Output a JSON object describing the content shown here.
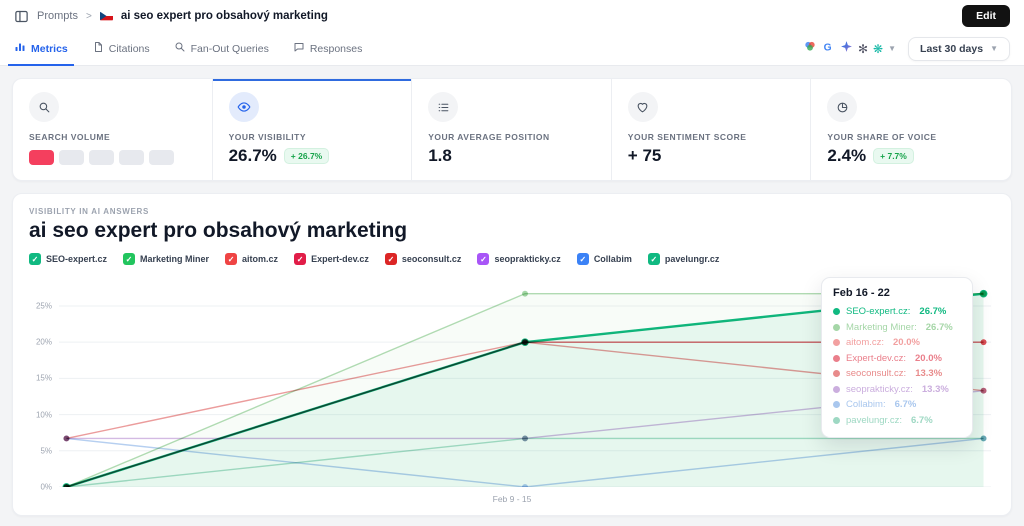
{
  "header": {
    "breadcrumb": "Prompts",
    "separator": ">",
    "title": "ai seo expert pro obsahový marketing",
    "edit_label": "Edit"
  },
  "tabs": [
    {
      "label": "Metrics",
      "active": true
    },
    {
      "label": "Citations",
      "active": false
    },
    {
      "label": "Fan-Out Queries",
      "active": false
    },
    {
      "label": "Responses",
      "active": false
    }
  ],
  "filters": {
    "date_range": "Last 30 days",
    "engine_icons": [
      "ai-models",
      "google",
      "gemini",
      "openai",
      "perplexity"
    ]
  },
  "metrics": [
    {
      "label": "SEARCH VOLUME",
      "volume": {
        "filled": 1,
        "total": 5,
        "filled_color": "#f43f5e",
        "empty_color": "#e7e9ee"
      }
    },
    {
      "label": "YOUR VISIBILITY",
      "value": "26.7%",
      "badge": "+ 26.7%",
      "active": true
    },
    {
      "label": "YOUR AVERAGE POSITION",
      "value": "1.8"
    },
    {
      "label": "YOUR SENTIMENT SCORE",
      "value": "+ 75"
    },
    {
      "label": "YOUR SHARE OF VOICE",
      "value": "2.4%",
      "badge": "+ 7.7%"
    }
  ],
  "chart_section": {
    "eyebrow": "VISIBILITY IN AI ANSWERS",
    "title": "ai seo expert pro obsahový marketing"
  },
  "tooltip": {
    "title": "Feb 16 - 22"
  },
  "chart_data": {
    "type": "line",
    "x": [
      "",
      "Feb 9 - 15",
      "Feb 16 - 22"
    ],
    "x_label": "Feb 9 - 15",
    "ylim": [
      0,
      29
    ],
    "yticks": [
      0,
      5,
      10,
      15,
      20,
      25
    ],
    "ytick_labels": [
      "0%",
      "5%",
      "10%",
      "15%",
      "20%",
      "25%"
    ],
    "grid": true,
    "legend_position": "top",
    "series": [
      {
        "name": "SEO-expert.cz",
        "color": "#10b981",
        "legend_color": "#10b981",
        "values": [
          0,
          20,
          26.7
        ],
        "tooltip_value": "26.7%",
        "emphasis": true,
        "area": true
      },
      {
        "name": "Marketing Miner",
        "color": "#a5d6a7",
        "legend_color": "#22c55e",
        "values": [
          0,
          26.7,
          26.7
        ],
        "tooltip_value": "26.7%",
        "area": true
      },
      {
        "name": "aitom.cz",
        "color": "#f2a0a0",
        "legend_color": "#ef4444",
        "values": [
          0,
          20,
          20
        ],
        "tooltip_value": "20.0%"
      },
      {
        "name": "Expert-dev.cz",
        "color": "#ea7f8b",
        "legend_color": "#e11d48",
        "values": [
          0,
          20,
          20
        ],
        "tooltip_value": "20.0%"
      },
      {
        "name": "seoconsult.cz",
        "color": "#e88b8b",
        "legend_color": "#dc2626",
        "values": [
          6.7,
          20,
          13.3
        ],
        "tooltip_value": "13.3%"
      },
      {
        "name": "seoprakticky.cz",
        "color": "#cbaede",
        "legend_color": "#a855f7",
        "values": [
          6.7,
          6.7,
          13.3
        ],
        "tooltip_value": "13.3%"
      },
      {
        "name": "Collabim",
        "color": "#a9c7ee",
        "legend_color": "#3b82f6",
        "values": [
          6.7,
          0,
          6.7
        ],
        "tooltip_value": "6.7%"
      },
      {
        "name": "pavelungr.cz",
        "color": "#9ed8c3",
        "legend_color": "#10b981",
        "values": [
          0,
          6.7,
          6.7
        ],
        "tooltip_value": "6.7%"
      }
    ]
  }
}
